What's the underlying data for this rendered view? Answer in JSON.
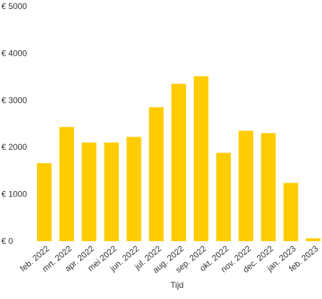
{
  "chart_data": {
    "type": "bar",
    "categories": [
      "feb. 2022",
      "mrt. 2022",
      "apr. 2022",
      "mei 2022",
      "jun. 2022",
      "jul. 2022",
      "aug. 2022",
      "sep. 2022",
      "okt. 2022",
      "nov. 2022",
      "dec. 2022",
      "jan. 2023",
      "feb. 2023"
    ],
    "values": [
      1660,
      2430,
      2100,
      2100,
      2220,
      2850,
      3350,
      3510,
      1880,
      2350,
      2300,
      1240,
      60
    ],
    "ylim": [
      0,
      5000
    ],
    "yticks": [
      0,
      1000,
      2000,
      3000,
      4000,
      5000
    ],
    "ytick_labels": [
      "€ 0",
      "€ 1000",
      "€ 2000",
      "€ 3000",
      "€ 4000",
      "€ 5000"
    ],
    "xlabel": "Tijd",
    "ylabel": "",
    "title": "",
    "grid": false,
    "legend": "none",
    "bar_color": "#ffcc00",
    "text_color": "#333333"
  }
}
